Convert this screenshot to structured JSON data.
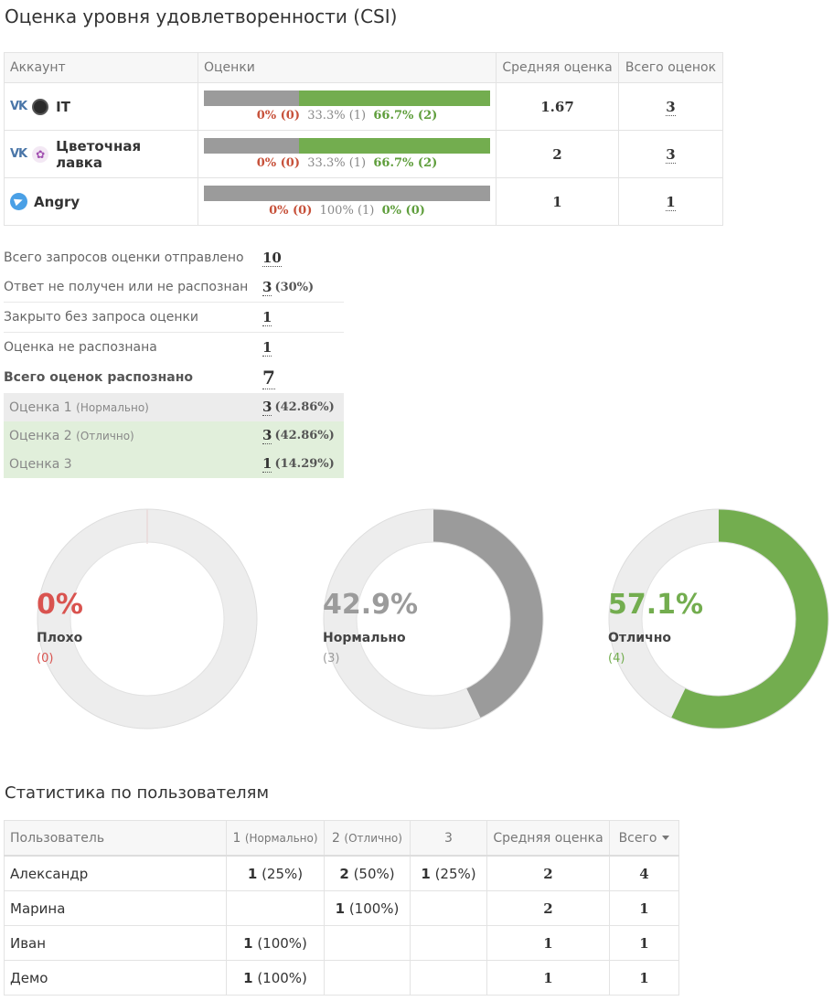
{
  "page_title": "Оценка уровня удовлетворенности (CSI)",
  "accounts_table": {
    "headers": [
      "Аккаунт",
      "Оценки",
      "Средняя оценка",
      "Всего оценок"
    ],
    "rows": [
      {
        "name": "IT",
        "platform_label": "VK",
        "avatar_icon": "dark-circle-avatar-icon",
        "bad": 0,
        "norm": 33.3,
        "good": 66.7,
        "labels": {
          "bad": "0% (0)",
          "norm": "33.3% (1)",
          "good": "66.7% (2)"
        },
        "avg": "1.67",
        "total": "3"
      },
      {
        "name": "Цветочная лавка",
        "platform_label": "VK",
        "avatar_icon": "flower-avatar-icon",
        "bad": 0,
        "norm": 33.3,
        "good": 66.7,
        "labels": {
          "bad": "0% (0)",
          "norm": "33.3% (1)",
          "good": "66.7% (2)"
        },
        "avg": "2",
        "total": "3"
      },
      {
        "name": "Angry",
        "platform_label": "",
        "avatar_icon": "telegram-icon",
        "bad": 0,
        "norm": 100,
        "good": 0,
        "labels": {
          "bad": "0% (0)",
          "norm": "100% (1)",
          "good": "0% (0)"
        },
        "avg": "1",
        "total": "1"
      }
    ]
  },
  "stats": {
    "sent_label": "Всего запросов оценки отправлено",
    "sent_value": "10",
    "no_answer_label": "Ответ не получен или не распознан",
    "no_answer_value": "3",
    "no_answer_pct": "(30%)",
    "closed_label": "Закрыто без запроса оценки",
    "closed_value": "1",
    "unrecognized_label": "Оценка не распознана",
    "unrecognized_value": "1",
    "total_label": "Всего оценок распознано",
    "total_value": "7",
    "grades": [
      {
        "label": "Оценка 1",
        "sub": "(Нормально)",
        "value": "3",
        "pct": "(42.86%)"
      },
      {
        "label": "Оценка 2",
        "sub": "(Отлично)",
        "value": "3",
        "pct": "(42.86%)"
      },
      {
        "label": "Оценка 3",
        "sub": "",
        "value": "1",
        "pct": "(14.29%)"
      }
    ]
  },
  "donuts": [
    {
      "pct": "0%",
      "fraction": 0,
      "name": "Плохо",
      "count": "(0)",
      "color": "#d9534f"
    },
    {
      "pct": "42.9%",
      "fraction": 0.429,
      "name": "Нормально",
      "count": "(3)",
      "color": "#9b9b9b"
    },
    {
      "pct": "57.1%",
      "fraction": 0.571,
      "name": "Отлично",
      "count": "(4)",
      "color": "#73ad4f"
    }
  ],
  "users_section_title": "Статистика по пользователям",
  "users_table": {
    "headers": {
      "user": "Пользователь",
      "g1": "1",
      "g1_sub": "(Нормально)",
      "g2": "2",
      "g2_sub": "(Отлично)",
      "g3": "3",
      "avg": "Средняя оценка",
      "total": "Всего"
    },
    "rows": [
      {
        "name": "Александр",
        "g1": "1",
        "g1_pct": "(25%)",
        "g2": "2",
        "g2_pct": "(50%)",
        "g3": "1",
        "g3_pct": "(25%)",
        "avg": "2",
        "total": "4"
      },
      {
        "name": "Марина",
        "g1": "",
        "g1_pct": "",
        "g2": "1",
        "g2_pct": "(100%)",
        "g3": "",
        "g3_pct": "",
        "avg": "2",
        "total": "1"
      },
      {
        "name": "Иван",
        "g1": "1",
        "g1_pct": "(100%)",
        "g2": "",
        "g2_pct": "",
        "g3": "",
        "g3_pct": "",
        "avg": "1",
        "total": "1"
      },
      {
        "name": "Демо",
        "g1": "1",
        "g1_pct": "(100%)",
        "g2": "",
        "g2_pct": "",
        "g3": "",
        "g3_pct": "",
        "avg": "1",
        "total": "1"
      }
    ]
  }
}
